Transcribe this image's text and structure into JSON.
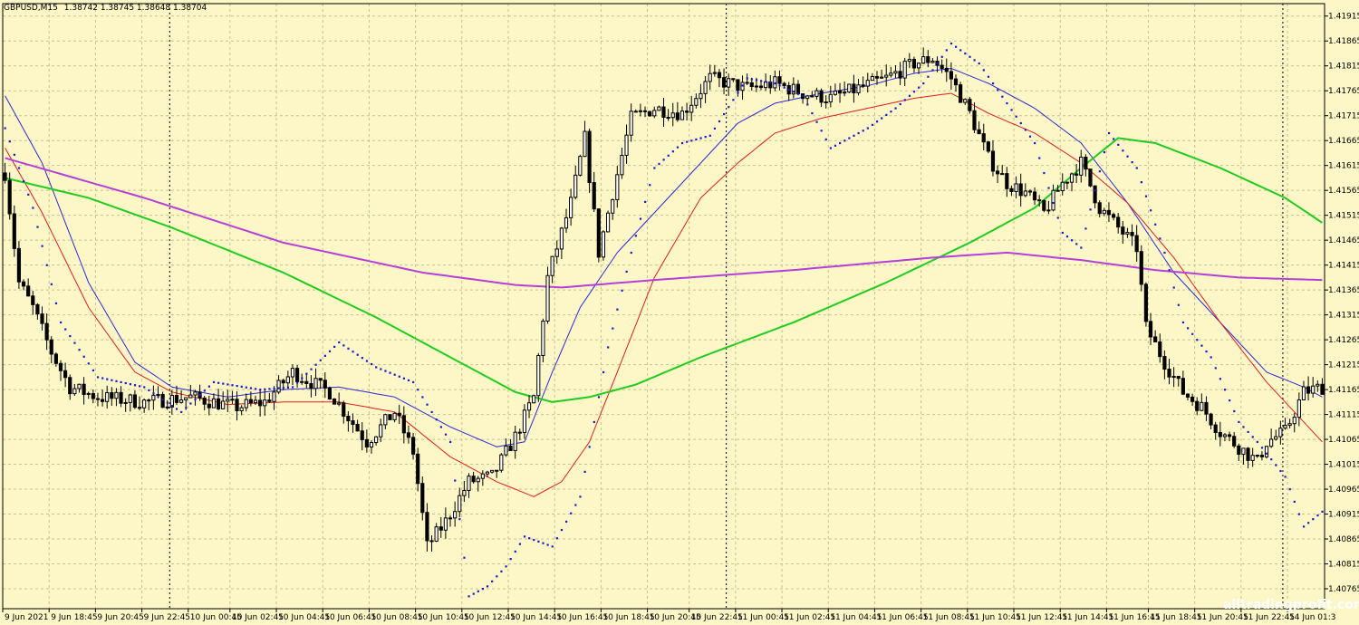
{
  "chart_data": {
    "type": "candlestick",
    "title": "GBPUSD,M15",
    "ohlc_text": "1.38742 1.38745 1.38648 1.38704",
    "watermark": "alltradingprofit.com",
    "colors": {
      "background": "#fdf6c6",
      "grid": "#c9c18a",
      "candle": "#000000",
      "ma_red": "#e01f1f",
      "ma_blue": "#2a2ad8",
      "ma_green": "#1fcc1f",
      "ma_purple": "#b63fd8",
      "psar": "#1a1acc"
    },
    "y_range": [
      1.40725,
      1.4194
    ],
    "y_ticks": [
      "1.41915",
      "1.41865",
      "1.41815",
      "1.41765",
      "1.41715",
      "1.41665",
      "1.41615",
      "1.41565",
      "1.41515",
      "1.41465",
      "1.41415",
      "1.41365",
      "1.41315",
      "1.41265",
      "1.41215",
      "1.41165",
      "1.41115",
      "1.41065",
      "1.41015",
      "1.40965",
      "1.40915",
      "1.40865",
      "1.40815",
      "1.40765"
    ],
    "x_labels": [
      "9 Jun 2021",
      "9 Jun 18:45",
      "9 Jun 20:45",
      "9 Jun 22:45",
      "10 Jun 00:45",
      "10 Jun 02:45",
      "10 Jun 04:45",
      "10 Jun 06:45",
      "10 Jun 08:45",
      "10 Jun 10:45",
      "10 Jun 12:45",
      "10 Jun 14:45",
      "10 Jun 16:45",
      "10 Jun 18:45",
      "10 Jun 20:45",
      "10 Jun 22:45",
      "11 Jun 00:45",
      "11 Jun 02:45",
      "11 Jun 04:45",
      "11 Jun 06:45",
      "11 Jun 08:45",
      "11 Jun 10:45",
      "11 Jun 12:45",
      "11 Jun 14:45",
      "11 Jun 16:45",
      "11 Jun 18:45",
      "11 Jun 20:45",
      "11 Jun 22:45",
      "14 Jun 01:3"
    ],
    "day_separators_bar_index": [
      36,
      156,
      276
    ],
    "bars": 285,
    "price_anchors": [
      [
        0,
        1.416
      ],
      [
        3,
        1.4138
      ],
      [
        6,
        1.4133
      ],
      [
        10,
        1.4124
      ],
      [
        14,
        1.4117
      ],
      [
        20,
        1.4115
      ],
      [
        30,
        1.4114
      ],
      [
        40,
        1.4115
      ],
      [
        50,
        1.4113
      ],
      [
        56,
        1.4114
      ],
      [
        62,
        1.412
      ],
      [
        70,
        1.4116
      ],
      [
        78,
        1.4106
      ],
      [
        84,
        1.4112
      ],
      [
        88,
        1.4104
      ],
      [
        91,
        1.4085
      ],
      [
        95,
        1.409
      ],
      [
        100,
        1.4098
      ],
      [
        105,
        1.4099
      ],
      [
        110,
        1.4107
      ],
      [
        114,
        1.4115
      ],
      [
        117,
        1.4139
      ],
      [
        119,
        1.4145
      ],
      [
        122,
        1.4154
      ],
      [
        125,
        1.4167
      ],
      [
        128,
        1.4144
      ],
      [
        131,
        1.4156
      ],
      [
        135,
        1.4171
      ],
      [
        140,
        1.4173
      ],
      [
        146,
        1.4172
      ],
      [
        152,
        1.4179
      ],
      [
        160,
        1.4177
      ],
      [
        166,
        1.4178
      ],
      [
        172,
        1.4176
      ],
      [
        178,
        1.4175
      ],
      [
        184,
        1.4177
      ],
      [
        190,
        1.4179
      ],
      [
        196,
        1.4182
      ],
      [
        200,
        1.4183
      ],
      [
        204,
        1.4179
      ],
      [
        208,
        1.4172
      ],
      [
        212,
        1.4163
      ],
      [
        216,
        1.4158
      ],
      [
        220,
        1.4156
      ],
      [
        224,
        1.4152
      ],
      [
        228,
        1.4158
      ],
      [
        232,
        1.4162
      ],
      [
        236,
        1.4153
      ],
      [
        240,
        1.4149
      ],
      [
        244,
        1.4145
      ],
      [
        246,
        1.4129
      ],
      [
        250,
        1.4122
      ],
      [
        254,
        1.4116
      ],
      [
        258,
        1.4113
      ],
      [
        262,
        1.4108
      ],
      [
        266,
        1.4105
      ],
      [
        270,
        1.4102
      ],
      [
        272,
        1.4106
      ],
      [
        276,
        1.4108
      ],
      [
        280,
        1.4116
      ],
      [
        284,
        1.4117
      ]
    ],
    "psar_anchors": [
      [
        0,
        1.4169
      ],
      [
        6,
        1.4153
      ],
      [
        12,
        1.413
      ],
      [
        20,
        1.4119
      ],
      [
        30,
        1.4117
      ],
      [
        38,
        1.4112
      ],
      [
        45,
        1.4118
      ],
      [
        55,
        1.41165
      ],
      [
        62,
        1.4117
      ],
      [
        72,
        1.4126
      ],
      [
        80,
        1.4121
      ],
      [
        88,
        1.4118
      ],
      [
        96,
        1.4106
      ],
      [
        100,
        1.4075
      ],
      [
        104,
        1.4077
      ],
      [
        108,
        1.4081
      ],
      [
        112,
        1.4087
      ],
      [
        118,
        1.4085
      ],
      [
        124,
        1.4095
      ],
      [
        130,
        1.4125
      ],
      [
        135,
        1.4144
      ],
      [
        140,
        1.4161
      ],
      [
        146,
        1.4166
      ],
      [
        152,
        1.41675
      ],
      [
        160,
        1.4179
      ],
      [
        166,
        1.4178
      ],
      [
        172,
        1.41755
      ],
      [
        178,
        1.4165
      ],
      [
        186,
        1.4169
      ],
      [
        192,
        1.4173
      ],
      [
        198,
        1.4178
      ],
      [
        204,
        1.4186
      ],
      [
        210,
        1.4182
      ],
      [
        216,
        1.4174
      ],
      [
        222,
        1.4166
      ],
      [
        228,
        1.4148
      ],
      [
        232,
        1.4145
      ],
      [
        238,
        1.4168
      ],
      [
        244,
        1.4161
      ],
      [
        250,
        1.4144
      ],
      [
        254,
        1.413
      ],
      [
        260,
        1.4123
      ],
      [
        266,
        1.411
      ],
      [
        270,
        1.4106
      ],
      [
        276,
        1.4099
      ],
      [
        280,
        1.4089
      ],
      [
        284,
        1.4092
      ]
    ],
    "series": [
      {
        "name": "",
        "color_key": "ma_blue",
        "values": [
          [
            0,
            1.41755
          ],
          [
            8,
            1.4162
          ],
          [
            18,
            1.4138
          ],
          [
            28,
            1.4122
          ],
          [
            36,
            1.4117
          ],
          [
            48,
            1.4115
          ],
          [
            60,
            1.41165
          ],
          [
            72,
            1.4117
          ],
          [
            84,
            1.4115
          ],
          [
            96,
            1.4109
          ],
          [
            106,
            1.4105
          ],
          [
            112,
            1.4106
          ],
          [
            118,
            1.412
          ],
          [
            124,
            1.4133
          ],
          [
            132,
            1.4144
          ],
          [
            140,
            1.4152
          ],
          [
            150,
            1.4162
          ],
          [
            158,
            1.417
          ],
          [
            166,
            1.4174
          ],
          [
            176,
            1.4176
          ],
          [
            186,
            1.41775
          ],
          [
            196,
            1.418
          ],
          [
            204,
            1.4181
          ],
          [
            212,
            1.4178
          ],
          [
            222,
            1.4173
          ],
          [
            232,
            1.4166
          ],
          [
            242,
            1.4154
          ],
          [
            252,
            1.414
          ],
          [
            262,
            1.413
          ],
          [
            272,
            1.412
          ],
          [
            280,
            1.4117
          ],
          [
            284,
            1.4115
          ]
        ]
      },
      {
        "name": "",
        "color_key": "ma_red",
        "values": [
          [
            0,
            1.4165
          ],
          [
            8,
            1.4152
          ],
          [
            18,
            1.4133
          ],
          [
            28,
            1.412
          ],
          [
            36,
            1.4116
          ],
          [
            48,
            1.41135
          ],
          [
            60,
            1.4114
          ],
          [
            72,
            1.4114
          ],
          [
            84,
            1.4112
          ],
          [
            96,
            1.4103
          ],
          [
            106,
            1.4098
          ],
          [
            114,
            1.4095
          ],
          [
            120,
            1.4098
          ],
          [
            126,
            1.4106
          ],
          [
            132,
            1.412
          ],
          [
            140,
            1.4139
          ],
          [
            150,
            1.4155
          ],
          [
            158,
            1.4162
          ],
          [
            166,
            1.4168
          ],
          [
            176,
            1.4171
          ],
          [
            186,
            1.4173
          ],
          [
            196,
            1.4175
          ],
          [
            204,
            1.4176
          ],
          [
            212,
            1.4172
          ],
          [
            222,
            1.4168
          ],
          [
            232,
            1.4162
          ],
          [
            242,
            1.4154
          ],
          [
            252,
            1.4143
          ],
          [
            262,
            1.413
          ],
          [
            272,
            1.4118
          ],
          [
            280,
            1.411
          ],
          [
            284,
            1.4106
          ]
        ]
      },
      {
        "name": "",
        "color_key": "ma_green",
        "values": [
          [
            0,
            1.4159
          ],
          [
            18,
            1.4155
          ],
          [
            36,
            1.4149
          ],
          [
            60,
            1.414
          ],
          [
            80,
            1.4131
          ],
          [
            96,
            1.4123
          ],
          [
            110,
            1.4116
          ],
          [
            118,
            1.4114
          ],
          [
            126,
            1.4115
          ],
          [
            136,
            1.41175
          ],
          [
            150,
            1.4123
          ],
          [
            170,
            1.413
          ],
          [
            190,
            1.4138
          ],
          [
            208,
            1.4146
          ],
          [
            222,
            1.4153
          ],
          [
            232,
            1.4161
          ],
          [
            240,
            1.4167
          ],
          [
            248,
            1.4166
          ],
          [
            262,
            1.4161
          ],
          [
            276,
            1.4155
          ],
          [
            284,
            1.415
          ]
        ]
      },
      {
        "name": "",
        "color_key": "ma_purple",
        "values": [
          [
            0,
            1.4163
          ],
          [
            30,
            1.4155
          ],
          [
            60,
            1.4146
          ],
          [
            90,
            1.414
          ],
          [
            110,
            1.41375
          ],
          [
            120,
            1.4137
          ],
          [
            140,
            1.41385
          ],
          [
            170,
            1.41405
          ],
          [
            200,
            1.4143
          ],
          [
            216,
            1.4144
          ],
          [
            232,
            1.41425
          ],
          [
            248,
            1.41405
          ],
          [
            266,
            1.4139
          ],
          [
            284,
            1.41385
          ]
        ]
      }
    ]
  }
}
